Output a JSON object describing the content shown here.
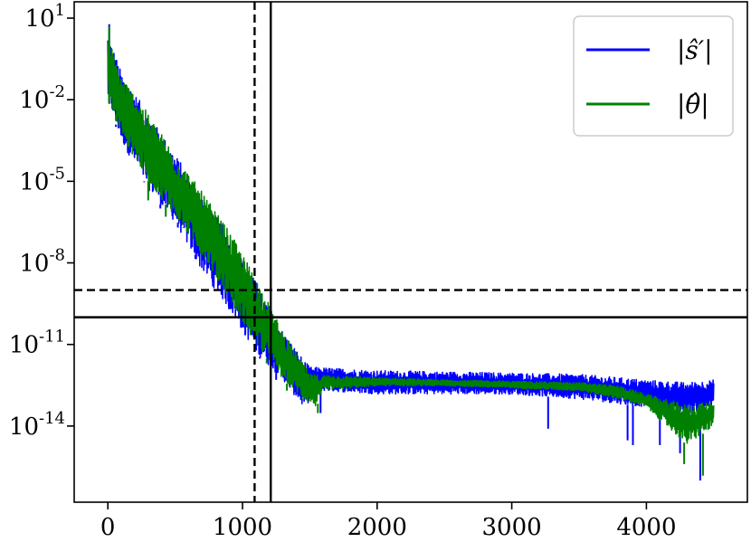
{
  "chart_data": {
    "type": "line",
    "title": "",
    "xlabel": "",
    "ylabel": "",
    "xlim": [
      -250,
      4750
    ],
    "ylim_log10": [
      -16.8,
      1.6
    ],
    "yscale": "log",
    "grid": false,
    "legend_position": "top-right",
    "x_ticks": [
      {
        "value": 0,
        "label": "0"
      },
      {
        "value": 1000,
        "label": "1000"
      },
      {
        "value": 2000,
        "label": "2000"
      },
      {
        "value": 3000,
        "label": "3000"
      },
      {
        "value": 4000,
        "label": "4000"
      }
    ],
    "y_ticks": [
      {
        "exp": 1,
        "base": "10",
        "sup": "1"
      },
      {
        "exp": -2,
        "base": "10",
        "sup": "-2"
      },
      {
        "exp": -5,
        "base": "10",
        "sup": "-5"
      },
      {
        "exp": -8,
        "base": "10",
        "sup": "-8"
      },
      {
        "exp": -11,
        "base": "10",
        "sup": "-11"
      },
      {
        "exp": -14,
        "base": "10",
        "sup": "-14"
      }
    ],
    "reference_lines": [
      {
        "orientation": "vertical",
        "x": 1090,
        "style": "dashed"
      },
      {
        "orientation": "vertical",
        "x": 1210,
        "style": "solid"
      },
      {
        "orientation": "horizontal",
        "y": 1e-09,
        "style": "dashed"
      },
      {
        "orientation": "horizontal",
        "y": 1e-10,
        "style": "solid"
      }
    ],
    "series": [
      {
        "name": "|ŝ′|",
        "color": "#0000ff",
        "upper": [
          [
            0,
            3
          ],
          [
            100,
            0.1
          ],
          [
            300,
            0.003
          ],
          [
            500,
            0.0001
          ],
          [
            700,
            3e-06
          ],
          [
            900,
            1e-07
          ],
          [
            1100,
            2e-09
          ],
          [
            1300,
            3e-11
          ],
          [
            1450,
            3e-12
          ],
          [
            1500,
            1.5e-12
          ],
          [
            2000,
            1.1e-12
          ],
          [
            2500,
            1e-12
          ],
          [
            3000,
            9e-13
          ],
          [
            3500,
            8e-13
          ],
          [
            4000,
            5e-13
          ],
          [
            4300,
            4e-13
          ],
          [
            4500,
            5e-13
          ]
        ],
        "lower": [
          [
            0,
            0.01
          ],
          [
            100,
            0.0003
          ],
          [
            300,
            5e-06
          ],
          [
            500,
            3e-07
          ],
          [
            700,
            5e-09
          ],
          [
            900,
            2e-10
          ],
          [
            1100,
            5e-12
          ],
          [
            1300,
            5e-13
          ],
          [
            1450,
            5e-14
          ],
          [
            1600,
            2e-13
          ],
          [
            2000,
            1.5e-13
          ],
          [
            2500,
            1.5e-13
          ],
          [
            3000,
            1.5e-13
          ],
          [
            3500,
            1e-13
          ],
          [
            4000,
            5e-14
          ],
          [
            4300,
            3e-14
          ],
          [
            4500,
            5e-14
          ]
        ],
        "spikes": [
          [
            10,
            6
          ],
          [
            60,
            0.001
          ],
          [
            150,
            0.0003
          ],
          [
            270,
            1e-05
          ],
          [
            390,
            1e-06
          ],
          [
            520,
            3e-07
          ],
          [
            650,
            2e-08
          ],
          [
            780,
            3e-09
          ],
          [
            900,
            1e-09
          ],
          [
            1020,
            2e-10
          ],
          [
            1130,
            3e-12
          ],
          [
            1250,
            5e-13
          ],
          [
            1360,
            2e-13
          ],
          [
            1580,
            3e-14
          ],
          [
            3270,
            8e-15
          ],
          [
            3860,
            3e-15
          ],
          [
            3900,
            2e-15
          ],
          [
            4100,
            2e-15
          ],
          [
            4250,
            1e-15
          ],
          [
            4400,
            1e-16
          ]
        ]
      },
      {
        "name": "|θ̂|",
        "color": "#008000",
        "upper": [
          [
            0,
            2
          ],
          [
            100,
            0.08
          ],
          [
            300,
            0.003
          ],
          [
            500,
            0.0001
          ],
          [
            700,
            4e-06
          ],
          [
            900,
            1.5e-07
          ],
          [
            1100,
            3e-09
          ],
          [
            1300,
            3e-11
          ],
          [
            1450,
            2e-12
          ],
          [
            1500,
            8e-13
          ],
          [
            2000,
            6e-13
          ],
          [
            2500,
            5e-13
          ],
          [
            3000,
            4.5e-13
          ],
          [
            3500,
            4e-13
          ],
          [
            3800,
            3e-13
          ],
          [
            4000,
            1.5e-13
          ],
          [
            4300,
            6e-14
          ],
          [
            4500,
            8e-14
          ]
        ],
        "lower": [
          [
            0,
            0.01
          ],
          [
            100,
            0.0005
          ],
          [
            300,
            1e-05
          ],
          [
            500,
            5e-07
          ],
          [
            700,
            2e-08
          ],
          [
            900,
            5e-10
          ],
          [
            1100,
            1e-11
          ],
          [
            1300,
            5e-13
          ],
          [
            1450,
            1e-13
          ],
          [
            1550,
            5e-14
          ],
          [
            1600,
            2e-13
          ],
          [
            2000,
            3e-13
          ],
          [
            2500,
            3e-13
          ],
          [
            3000,
            2.5e-13
          ],
          [
            3500,
            2e-13
          ],
          [
            3800,
            1e-13
          ],
          [
            4000,
            5e-14
          ],
          [
            4300,
            2e-15
          ],
          [
            4500,
            1e-14
          ]
        ],
        "spikes": [
          [
            10,
            5
          ],
          [
            60,
            0.003
          ],
          [
            180,
            0.0001
          ],
          [
            300,
            2e-06
          ],
          [
            430,
            5e-07
          ],
          [
            560,
            2e-07
          ],
          [
            690,
            5e-08
          ],
          [
            820,
            5e-09
          ],
          [
            950,
            2e-09
          ],
          [
            1060,
            3e-10
          ],
          [
            1180,
            2e-12
          ],
          [
            1330,
            2e-13
          ],
          [
            1440,
            1e-13
          ],
          [
            1560,
            3e-14
          ],
          [
            4280,
            4e-16
          ],
          [
            4420,
            1.5e-16
          ]
        ]
      }
    ]
  }
}
